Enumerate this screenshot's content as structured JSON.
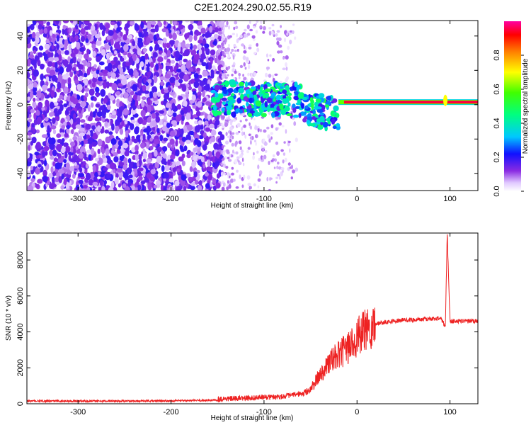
{
  "figure": {
    "title": "C2E1.2024.290.02.55.R19"
  },
  "chart_data": [
    {
      "type": "heatmap",
      "title": "C2E1.2024.290.02.55.R19",
      "xlabel": "Height of straight line (km)",
      "ylabel": "Frequency (Hz)",
      "xlim": [
        -355,
        130
      ],
      "ylim": [
        -50,
        49
      ],
      "x_ticks": [
        -300,
        -200,
        -100,
        0,
        100
      ],
      "y_ticks": [
        -40,
        -20,
        0,
        20,
        40
      ],
      "colorbar": {
        "label": "Normalized spectral amplitude",
        "range": [
          0,
          1
        ],
        "ticks": [
          0.0,
          0.2,
          0.4,
          0.6,
          0.8
        ]
      },
      "features": [
        {
          "name": "noise",
          "x_range": [
            -355,
            -145
          ],
          "y_range": [
            -50,
            49
          ],
          "amplitude": 0.15
        },
        {
          "name": "sparse noise",
          "x_range": [
            -145,
            -65
          ],
          "y_range": [
            -50,
            49
          ],
          "amplitude": 0.08
        },
        {
          "name": "onset",
          "x_range": [
            -155,
            -20
          ],
          "y_range": [
            -15,
            12
          ],
          "amplitude": 0.4
        },
        {
          "name": "carrier",
          "x_range": [
            -20,
            130
          ],
          "y_center": 1.5,
          "amplitude": 0.95
        },
        {
          "name": "spike",
          "x": 95,
          "y_range": [
            -2,
            8
          ],
          "amplitude": 0.7
        }
      ]
    },
    {
      "type": "line",
      "xlabel": "Height of straight line (km)",
      "ylabel": "SNR (10 * v/v)",
      "xlim": [
        -355,
        130
      ],
      "ylim": [
        0,
        9500
      ],
      "x_ticks": [
        -300,
        -200,
        -100,
        0,
        100
      ],
      "y_ticks": [
        0,
        2000,
        4000,
        6000,
        8000
      ],
      "series": [
        {
          "color": "#ee2222",
          "x": [
            -355,
            -300,
            -250,
            -200,
            -150,
            -120,
            -100,
            -80,
            -60,
            -50,
            -40,
            -30,
            -20,
            -10,
            0,
            10,
            20,
            30,
            50,
            70,
            90,
            95,
            97,
            100,
            110,
            130
          ],
          "y": [
            150,
            150,
            150,
            160,
            200,
            250,
            300,
            350,
            500,
            800,
            1600,
            2300,
            2700,
            3100,
            3700,
            4100,
            4450,
            4550,
            4650,
            4700,
            4750,
            4300,
            9500,
            4600,
            4600,
            4600
          ]
        }
      ]
    }
  ]
}
